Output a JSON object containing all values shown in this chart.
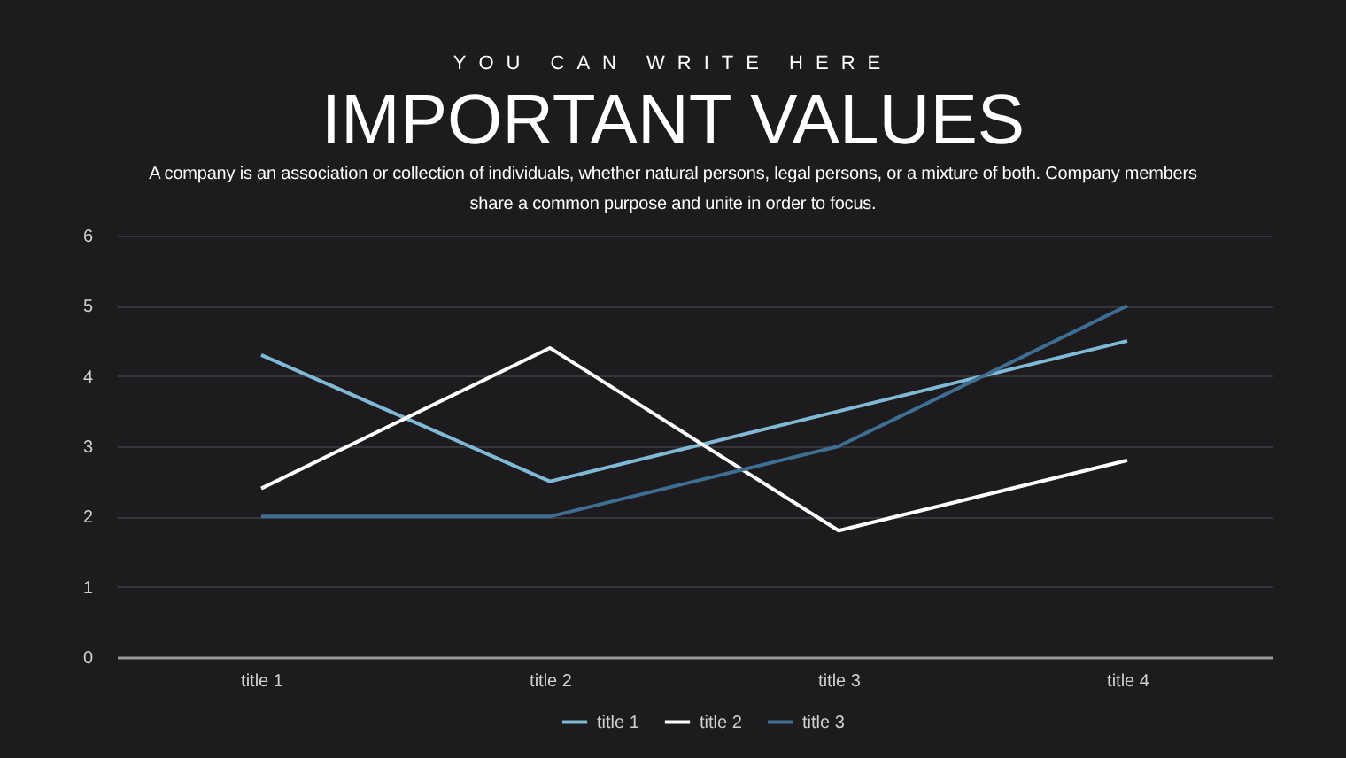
{
  "chart_data": {
    "type": "line",
    "subtitle": "YOU CAN WRITE HERE",
    "title": "IMPORTANT VALUES",
    "annotations": [
      "A company is an association or collection of individuals, whether natural persons, legal persons, or a mixture of both. Company members share a common purpose and unite in order to focus."
    ],
    "categories": [
      "title 1",
      "title 2",
      "title 3",
      "title 4"
    ],
    "series": [
      {
        "name": "title 1",
        "color": "#7fb9d6",
        "values": [
          4.3,
          2.5,
          3.5,
          4.5
        ]
      },
      {
        "name": "title 2",
        "color": "#ffffff",
        "values": [
          2.4,
          4.4,
          1.8,
          2.8
        ]
      },
      {
        "name": "title 3",
        "color": "#3e6f93",
        "values": [
          2,
          2,
          3,
          5
        ]
      }
    ],
    "ylim": [
      0,
      6
    ],
    "yticks": [
      0,
      1,
      2,
      3,
      4,
      5,
      6
    ],
    "grid": "y",
    "legend": "bottom"
  }
}
